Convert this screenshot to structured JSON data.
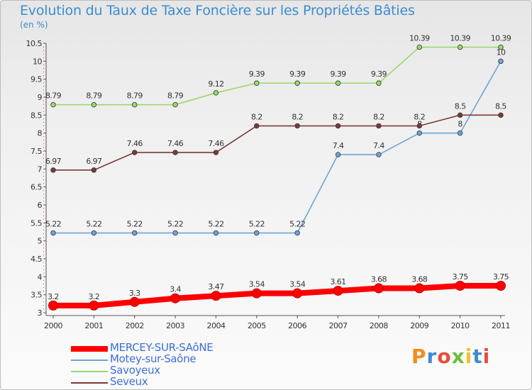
{
  "title": "Evolution du Taux de Taxe Foncière sur les Propriétés Bâties",
  "subtitle": "(en %)",
  "brand": "Proxiti",
  "chart_data": {
    "type": "line",
    "title": "Evolution du Taux de Taxe Foncière sur les Propriétés Bâties",
    "ylabel": "(en %)",
    "xlabel": "",
    "x": [
      "2000",
      "2001",
      "2002",
      "2003",
      "2004",
      "2005",
      "2006",
      "2007",
      "2008",
      "2009",
      "2010",
      "2011"
    ],
    "ylim": [
      3,
      10.5
    ],
    "yticks": [
      "3",
      "3.5",
      "4",
      "4.5",
      "5",
      "5.5",
      "6",
      "6.5",
      "7",
      "7.5",
      "8",
      "8.5",
      "9",
      "9.5",
      "10",
      "10.5"
    ],
    "grid": false,
    "legend_position": "bottom-left",
    "series": [
      {
        "name": "MERCEY-SUR-SAôNE",
        "color": "#ff0000",
        "values": [
          3.2,
          3.2,
          3.3,
          3.4,
          3.47,
          3.54,
          3.54,
          3.61,
          3.68,
          3.68,
          3.75,
          3.75
        ],
        "labels": [
          "3.2",
          "3.2",
          "3.3",
          "3.4",
          "3.47",
          "3.54",
          "3.54",
          "3.61",
          "3.68",
          "3.68",
          "3.75",
          "3.75"
        ]
      },
      {
        "name": "Motey-sur-Saône",
        "color": "#6fa4d6",
        "values": [
          5.22,
          5.22,
          5.22,
          5.22,
          5.22,
          5.22,
          5.22,
          7.4,
          7.4,
          8,
          8,
          10
        ],
        "labels": [
          "5.22",
          "5.22",
          "5.22",
          "5.22",
          "5.22",
          "5.22",
          "5.22",
          "7.4",
          "7.4",
          "8",
          "8",
          "10"
        ]
      },
      {
        "name": "Savoyeux",
        "color": "#99d96a",
        "values": [
          8.79,
          8.79,
          8.79,
          8.79,
          9.12,
          9.39,
          9.39,
          9.39,
          9.39,
          10.39,
          10.39,
          10.39
        ],
        "labels": [
          "8.79",
          "8.79",
          "8.79",
          "8.79",
          "9.12",
          "9.39",
          "9.39",
          "9.39",
          "9.39",
          "10.39",
          "10.39",
          "10.39"
        ]
      },
      {
        "name": "Seveux",
        "color": "#7a3b3b",
        "values": [
          6.97,
          6.97,
          7.46,
          7.46,
          7.46,
          8.2,
          8.2,
          8.2,
          8.2,
          8.2,
          8.5,
          8.5
        ],
        "labels": [
          "6.97",
          "6.97",
          "7.46",
          "7.46",
          "7.46",
          "8.2",
          "8.2",
          "8.2",
          "8.2",
          "8.2",
          "8.5",
          "8.5"
        ]
      }
    ]
  }
}
